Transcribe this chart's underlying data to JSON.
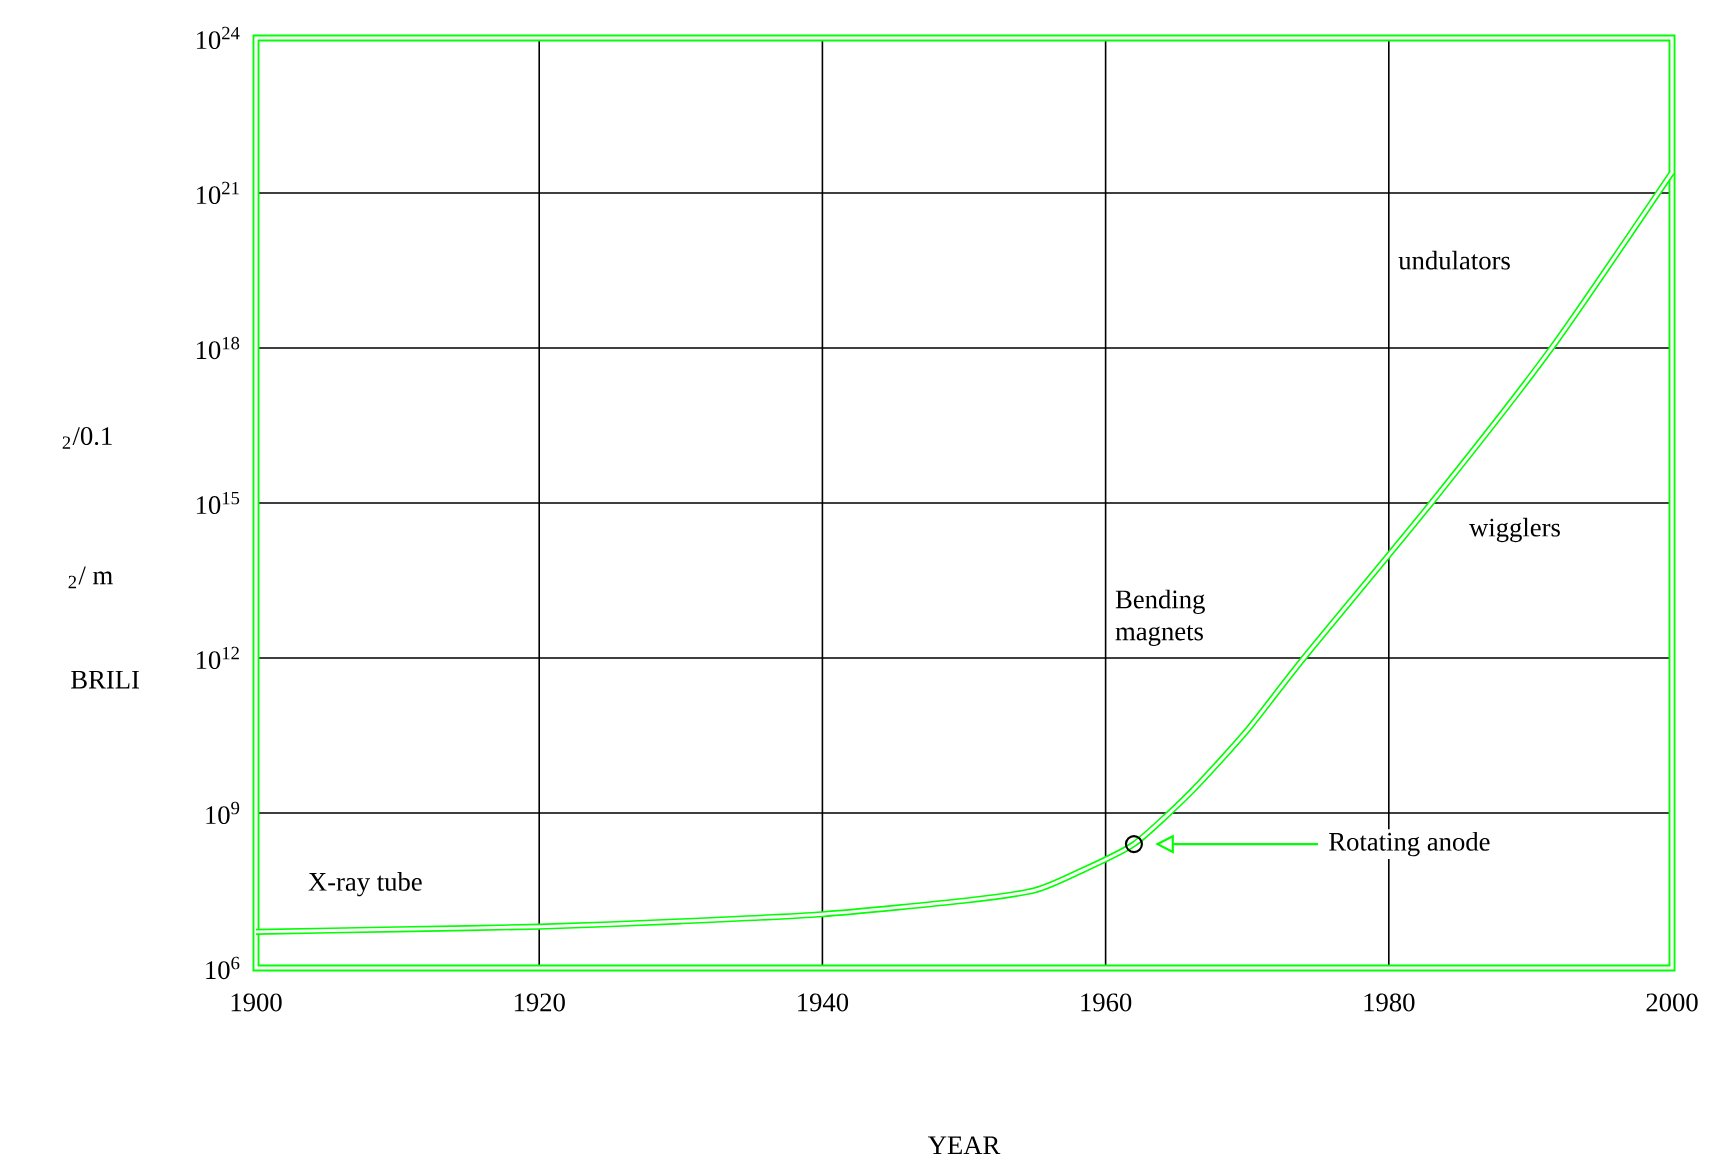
{
  "chart_data": {
    "type": "line",
    "xlabel": "YEAR",
    "ylabel": "BRILI",
    "log": "y",
    "grid": true,
    "xlim": [
      1900,
      2000
    ],
    "xticks": [
      1900,
      1920,
      1940,
      1960,
      1980,
      2000
    ],
    "ylim": [
      1000000.0,
      1e+24
    ],
    "yticks": [
      {
        "value": 1000000.0,
        "label": "10$^{6}$"
      },
      {
        "value": 1000000000.0,
        "label": "10$^{9}$"
      },
      {
        "value": 1000000000000.0,
        "label": "10$^{12}$"
      },
      {
        "value": 1000000000000000.0,
        "label": "10$^{15}$"
      },
      {
        "value": 1e+18,
        "label": "10$^{18}$"
      },
      {
        "value": 1e+21,
        "label": "10$^{21}$"
      },
      {
        "value": 1e+24,
        "label": "10$^{24}$"
      }
    ],
    "series": [
      {
        "color": "#00ff00",
        "marker": "none",
        "x": [
          1900,
          1910,
          1920,
          1930,
          1940,
          1950,
          1955,
          1958,
          1962,
          1966,
          1970,
          1974,
          1983,
          1991.5,
          2000
        ],
        "values": [
          5000000.0,
          5600000.0,
          6300000.0,
          8000000.0,
          11000000.0,
          20000000.0,
          32000000.0,
          70000000.0,
          250000000.0,
          2500000000.0,
          40000000000.0,
          1000000000000.0,
          1000000000000000.0,
          1e+18,
          2.5e+21
        ]
      },
      {
        "type": "scatter",
        "color": "#000000",
        "marker": "circle",
        "x": [
          1962
        ],
        "values": [
          250000000.0
        ]
      }
    ],
    "annotations": [
      "X-ray tube",
      "Bending magnets",
      "wigglers",
      "undulators",
      "Rotating anode",
      "$_{2}$/ m",
      "$_{2}$/0.1"
    ]
  }
}
